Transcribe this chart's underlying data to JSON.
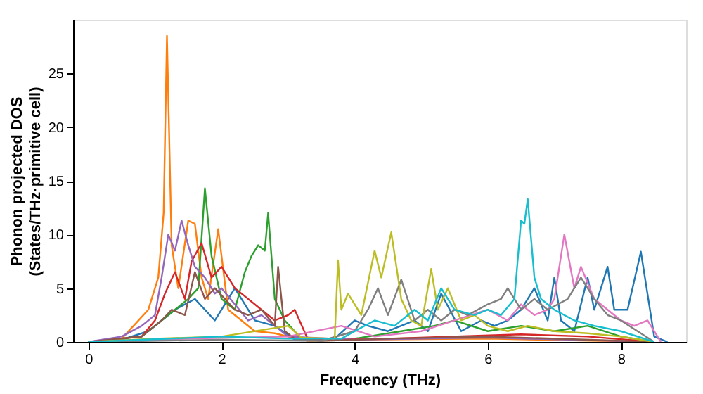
{
  "chart_data": {
    "type": "line",
    "xlabel": "Frequency (THz)",
    "ylabel": "Phonon projected DOS\n(States/THz·primitive cell)",
    "xlim": [
      -0.23,
      8.98
    ],
    "ylim": [
      0,
      30
    ],
    "xticks": [
      0,
      2,
      4,
      6,
      8
    ],
    "yticks": [
      0,
      5,
      10,
      15,
      20,
      25
    ],
    "grid": false,
    "legend": false,
    "marker": "none",
    "line_style": "solid",
    "series": [
      {
        "color": "#1f77b4",
        "x": [
          0,
          0.5,
          0.9,
          1.1,
          1.3,
          1.6,
          1.9,
          2.2,
          2.5,
          2.8,
          3.1,
          3.7,
          4.0,
          4.2,
          4.5,
          4.9,
          5.1,
          5.3,
          5.6,
          5.9,
          6.1,
          6.3,
          6.5,
          6.6,
          6.7,
          6.9,
          7.0,
          7.1,
          7.3,
          7.5,
          7.6,
          7.8,
          7.9,
          8.1,
          8.3,
          8.5,
          8.7
        ],
        "values": [
          0,
          0.2,
          1,
          2,
          3,
          4,
          2,
          5,
          2,
          1.5,
          0.2,
          0.3,
          2,
          1.5,
          1,
          2,
          1,
          4.5,
          1,
          2,
          1.5,
          2,
          3,
          4,
          5,
          2,
          6,
          2,
          1,
          6,
          3,
          7,
          3,
          3,
          8.4,
          0.5,
          0
        ]
      },
      {
        "color": "#ff7f0e",
        "x": [
          0,
          0.5,
          0.9,
          1.05,
          1.13,
          1.18,
          1.25,
          1.35,
          1.5,
          1.6,
          1.7,
          1.8,
          1.95,
          2.1,
          2.3,
          2.5,
          2.8,
          3.0,
          3.3,
          4.0,
          6.0,
          8.5
        ],
        "values": [
          0,
          0.3,
          3,
          6,
          12,
          28.5,
          9,
          5,
          11.3,
          11,
          6,
          4,
          10.5,
          3,
          2,
          1,
          0.8,
          0.5,
          0.1,
          0.2,
          0.3,
          0
        ]
      },
      {
        "color": "#2ca02c",
        "x": [
          0,
          0.8,
          1.1,
          1.3,
          1.5,
          1.65,
          1.75,
          1.85,
          2.0,
          2.2,
          2.35,
          2.45,
          2.55,
          2.65,
          2.7,
          2.8,
          2.95,
          3.2,
          4.0,
          4.7,
          5.2,
          5.5,
          6.0,
          6.5,
          7.0,
          7.5,
          8.0,
          8.5
        ],
        "values": [
          0,
          0.5,
          2,
          3,
          4,
          5,
          14.3,
          8,
          4,
          3,
          6.5,
          8,
          9,
          8.5,
          12,
          4,
          2,
          0.3,
          0.3,
          1,
          1.5,
          2,
          1,
          1.5,
          1,
          1.5,
          0.5,
          0
        ]
      },
      {
        "color": "#d62728",
        "x": [
          0,
          0.8,
          1.0,
          1.15,
          1.3,
          1.45,
          1.55,
          1.7,
          1.85,
          2.0,
          2.2,
          2.4,
          2.6,
          2.8,
          3.0,
          3.1,
          3.3,
          4.5,
          6.5,
          7.5,
          8.5
        ],
        "values": [
          0,
          0.5,
          2,
          4.5,
          6.5,
          4,
          7.5,
          9.2,
          6,
          7,
          5,
          4,
          3,
          2,
          2.5,
          3,
          0.2,
          0.3,
          0.7,
          0.5,
          0
        ]
      },
      {
        "color": "#9467bd",
        "x": [
          0,
          0.5,
          0.8,
          1.0,
          1.1,
          1.2,
          1.3,
          1.4,
          1.5,
          1.6,
          1.75,
          1.9,
          2.0,
          2.2,
          2.4,
          2.6,
          2.8,
          3.0,
          4.0,
          6.0,
          8.5
        ],
        "values": [
          0,
          0.5,
          1.5,
          2.5,
          6,
          10,
          8.5,
          11.3,
          9,
          7,
          6,
          4.5,
          5,
          3.5,
          2,
          2.5,
          1.5,
          0.5,
          0.2,
          0.4,
          0
        ]
      },
      {
        "color": "#8c564b",
        "x": [
          0,
          0.8,
          1.1,
          1.25,
          1.45,
          1.6,
          1.75,
          1.9,
          2.05,
          2.2,
          2.4,
          2.6,
          2.8,
          2.85,
          2.95,
          3.1,
          3.5,
          4.5,
          6.0,
          8.5
        ],
        "values": [
          0,
          0.5,
          2,
          3,
          2.5,
          6.5,
          4,
          5,
          4,
          3,
          2.5,
          3,
          1.5,
          7,
          1,
          0.3,
          0.1,
          0.3,
          0.5,
          0
        ]
      },
      {
        "color": "#e377c2",
        "x": [
          0,
          1.5,
          3.0,
          3.8,
          4.3,
          5.0,
          5.5,
          6.0,
          6.3,
          6.5,
          6.7,
          6.9,
          7.0,
          7.15,
          7.3,
          7.4,
          7.6,
          7.8,
          8.0,
          8.2,
          8.4,
          8.6
        ],
        "values": [
          0,
          0.3,
          0.5,
          1.5,
          0.5,
          1,
          2,
          3,
          2,
          3.5,
          2.5,
          3,
          4,
          10,
          5,
          7,
          4,
          3,
          2,
          1.5,
          2,
          0
        ]
      },
      {
        "color": "#7f7f7f",
        "x": [
          0,
          2.0,
          3.5,
          4.0,
          4.2,
          4.35,
          4.5,
          4.7,
          4.9,
          5.1,
          5.3,
          5.5,
          5.7,
          6.0,
          6.2,
          6.3,
          6.5,
          6.7,
          6.9,
          7.2,
          7.4,
          7.6,
          7.8,
          8.0,
          8.5
        ],
        "values": [
          0,
          0.2,
          0.1,
          1,
          3,
          5,
          2.5,
          5.8,
          2,
          3,
          2,
          3,
          2.5,
          3.5,
          4,
          5,
          3,
          4,
          3,
          4,
          6,
          4,
          2.5,
          2,
          0
        ]
      },
      {
        "color": "#bcbd22",
        "x": [
          0,
          1.0,
          2.0,
          3.0,
          3.2,
          3.7,
          3.75,
          3.8,
          3.9,
          4.1,
          4.3,
          4.4,
          4.55,
          4.7,
          4.85,
          5.0,
          5.15,
          5.25,
          5.4,
          5.6,
          5.8,
          6.0,
          6.3,
          6.6,
          7.0,
          7.5,
          8.0,
          8.5
        ],
        "values": [
          0,
          0.3,
          0.5,
          1.5,
          0.4,
          0.3,
          7.6,
          3,
          4.5,
          2.5,
          8.5,
          6,
          10.2,
          4,
          2,
          1.5,
          6.8,
          3,
          5,
          2,
          2.5,
          1.5,
          1,
          1.5,
          1,
          0.8,
          0.5,
          0
        ]
      },
      {
        "color": "#17becf",
        "x": [
          0,
          2.0,
          3.0,
          3.8,
          4.0,
          4.3,
          4.6,
          4.9,
          5.1,
          5.3,
          5.5,
          5.8,
          6.0,
          6.2,
          6.4,
          6.5,
          6.55,
          6.6,
          6.7,
          6.8,
          7.0,
          7.3,
          7.6,
          8.0,
          8.5
        ],
        "values": [
          0,
          0.5,
          0.3,
          0.3,
          1,
          2,
          1.5,
          3,
          2,
          5,
          3,
          2.5,
          3,
          2.5,
          4,
          11.3,
          11,
          13.3,
          6,
          4,
          3,
          2,
          1.5,
          1,
          0
        ]
      }
    ]
  }
}
